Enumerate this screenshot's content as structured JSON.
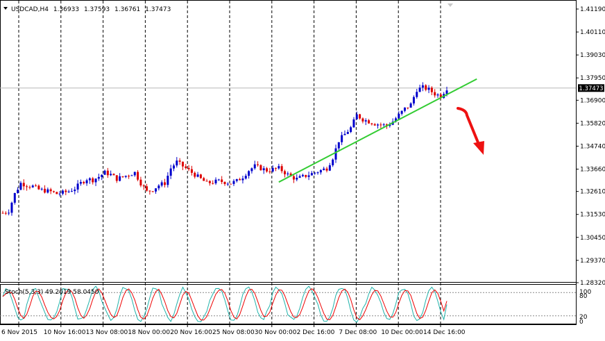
{
  "header": {
    "symbol": "USDCAD,H4",
    "open": "1.36933",
    "high": "1.37593",
    "low": "1.36761",
    "close": "1.37473"
  },
  "indicator": {
    "label": "Stoch(5,3,3) 49.2619 58.0450",
    "levels": [
      "100",
      "80",
      "20",
      "0"
    ]
  },
  "price_label": "1.37473",
  "colors": {
    "bull": "#0000cc",
    "bear": "#dd0000",
    "trendline": "#33cc33",
    "arrow": "#ee1111",
    "stoch_main": "#20b2aa",
    "stoch_signal": "#ee0000",
    "grid": "#000000",
    "background": "#ffffff"
  },
  "chart_data": {
    "type": "candlestick",
    "title": "USDCAD,H4",
    "y_ticks": [
      "1.41190",
      "1.40110",
      "1.39030",
      "1.37950",
      "1.36900",
      "1.35820",
      "1.34740",
      "1.33660",
      "1.32610",
      "1.31530",
      "1.30450",
      "1.29370",
      "1.28320"
    ],
    "ylim": [
      1.2832,
      1.4119
    ],
    "x_ticks": [
      "6 Nov 2015",
      "10 Nov 16:00",
      "13 Nov 08:00",
      "18 Nov 00:00",
      "20 Nov 16:00",
      "25 Nov 08:00",
      "30 Nov 00:00",
      "2 Dec 16:00",
      "7 Dec 08:00",
      "10 Dec 00:00",
      "14 Dec 16:00"
    ],
    "close_path": [
      [
        0,
        1.316
      ],
      [
        1,
        1.317
      ],
      [
        2,
        1.325
      ],
      [
        3,
        1.33
      ],
      [
        4,
        1.329
      ],
      [
        5,
        1.3285
      ],
      [
        6,
        1.327
      ],
      [
        7,
        1.3265
      ],
      [
        8,
        1.326
      ],
      [
        9,
        1.325
      ],
      [
        10,
        1.3255
      ],
      [
        11,
        1.3262
      ],
      [
        12,
        1.3275
      ],
      [
        13,
        1.33
      ],
      [
        14,
        1.332
      ],
      [
        15,
        1.3315
      ],
      [
        16,
        1.333
      ],
      [
        17,
        1.335
      ],
      [
        18,
        1.334
      ],
      [
        19,
        1.332
      ],
      [
        20,
        1.333
      ],
      [
        21,
        1.334
      ],
      [
        22,
        1.335
      ],
      [
        23,
        1.33
      ],
      [
        24,
        1.326
      ],
      [
        25,
        1.327
      ],
      [
        26,
        1.329
      ],
      [
        27,
        1.33
      ],
      [
        28,
        1.337
      ],
      [
        29,
        1.34
      ],
      [
        30,
        1.338
      ],
      [
        31,
        1.336
      ],
      [
        32,
        1.334
      ],
      [
        33,
        1.332
      ],
      [
        34,
        1.33
      ],
      [
        35,
        1.3305
      ],
      [
        36,
        1.331
      ],
      [
        37,
        1.3305
      ],
      [
        38,
        1.33
      ],
      [
        39,
        1.331
      ],
      [
        40,
        1.333
      ],
      [
        41,
        1.336
      ],
      [
        42,
        1.338
      ],
      [
        43,
        1.337
      ],
      [
        44,
        1.336
      ],
      [
        45,
        1.3365
      ],
      [
        46,
        1.337
      ],
      [
        47,
        1.335
      ],
      [
        48,
        1.333
      ],
      [
        49,
        1.332
      ],
      [
        50,
        1.333
      ],
      [
        51,
        1.334
      ],
      [
        52,
        1.335
      ],
      [
        53,
        1.336
      ],
      [
        54,
        1.337
      ],
      [
        55,
        1.342
      ],
      [
        56,
        1.35
      ],
      [
        57,
        1.353
      ],
      [
        58,
        1.356
      ],
      [
        59,
        1.362
      ],
      [
        60,
        1.36
      ],
      [
        61,
        1.359
      ],
      [
        62,
        1.358
      ],
      [
        63,
        1.3575
      ],
      [
        64,
        1.357
      ],
      [
        65,
        1.359
      ],
      [
        66,
        1.362
      ],
      [
        67,
        1.365
      ],
      [
        68,
        1.367
      ],
      [
        69,
        1.374
      ],
      [
        70,
        1.375
      ],
      [
        71,
        1.374
      ],
      [
        72,
        1.372
      ],
      [
        73,
        1.371
      ],
      [
        74,
        1.3747
      ]
    ],
    "trendline": [
      [
        46,
        1.3305
      ],
      [
        79,
        1.379
      ]
    ],
    "current_price": 1.37473,
    "stochastic": {
      "main_last": 49.2619,
      "signal_last": 58.045,
      "levels": [
        100,
        80,
        20,
        0
      ]
    }
  }
}
